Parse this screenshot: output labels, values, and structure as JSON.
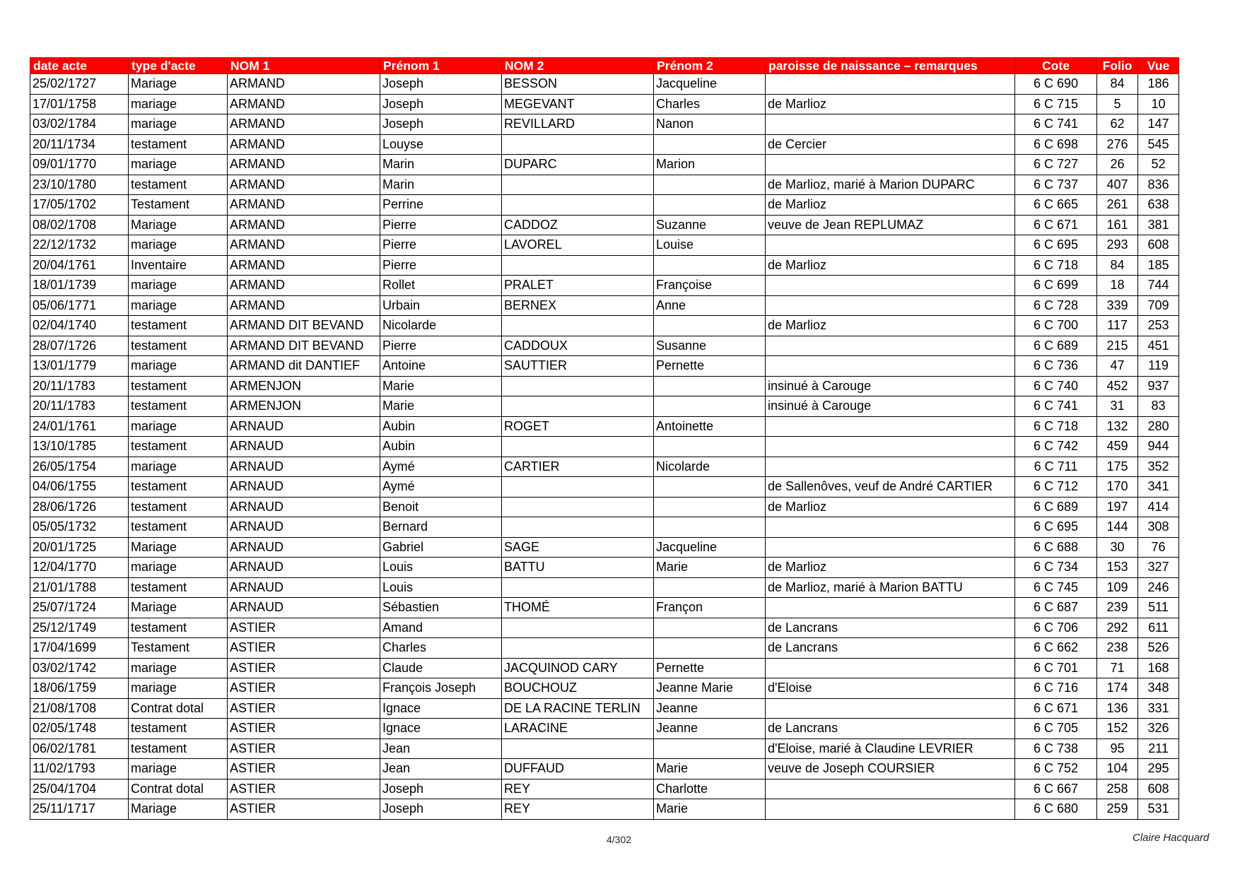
{
  "headers": [
    "date acte",
    "type d'acte",
    "NOM 1",
    "Prénom 1",
    "NOM 2",
    "Prénom 2",
    "paroisse de naissance – remarques",
    "Cote",
    "Folio",
    "Vue"
  ],
  "colors": {
    "header_bg": "#ff0000",
    "header_text": "#ffffff"
  },
  "rows": [
    [
      "25/02/1727",
      "Mariage",
      "ARMAND",
      "Joseph",
      "BESSON",
      "Jacqueline",
      "",
      "6 C 690",
      "84",
      "186"
    ],
    [
      "17/01/1758",
      "mariage",
      "ARMAND",
      "Joseph",
      "MEGEVANT",
      "Charles",
      "de Marlioz",
      "6 C 715",
      "5",
      "10"
    ],
    [
      "03/02/1784",
      "mariage",
      "ARMAND",
      "Joseph",
      "REVILLARD",
      "Nanon",
      "",
      "6 C 741",
      "62",
      "147"
    ],
    [
      "20/11/1734",
      "testament",
      "ARMAND",
      "Louyse",
      "",
      "",
      "de Cercier",
      "6 C 698",
      "276",
      "545"
    ],
    [
      "09/01/1770",
      "mariage",
      "ARMAND",
      "Marin",
      "DUPARC",
      "Marion",
      "",
      "6 C 727",
      "26",
      "52"
    ],
    [
      "23/10/1780",
      "testament",
      "ARMAND",
      "Marin",
      "",
      "",
      "de Marlioz, marié à Marion DUPARC",
      "6 C 737",
      "407",
      "836"
    ],
    [
      "17/05/1702",
      "Testament",
      "ARMAND",
      "Perrine",
      "",
      "",
      "de Marlioz",
      "6 C 665",
      "261",
      "638"
    ],
    [
      "08/02/1708",
      "Mariage",
      "ARMAND",
      "Pierre",
      "CADDOZ",
      "Suzanne",
      "veuve de Jean REPLUMAZ",
      "6 C 671",
      "161",
      "381"
    ],
    [
      "22/12/1732",
      "mariage",
      "ARMAND",
      "Pierre",
      "LAVOREL",
      "Louise",
      "",
      "6 C 695",
      "293",
      "608"
    ],
    [
      "20/04/1761",
      "Inventaire",
      "ARMAND",
      "Pierre",
      "",
      "",
      "de Marlioz",
      "6 C 718",
      "84",
      "185"
    ],
    [
      "18/01/1739",
      "mariage",
      "ARMAND",
      "Rollet",
      "PRALET",
      "Françoise",
      "",
      "6 C 699",
      "18",
      "744"
    ],
    [
      "05/06/1771",
      "mariage",
      "ARMAND",
      "Urbain",
      "BERNEX",
      "Anne",
      "",
      "6 C 728",
      "339",
      "709"
    ],
    [
      "02/04/1740",
      "testament",
      "ARMAND DIT BEVAND",
      "Nicolarde",
      "",
      "",
      "de Marlioz",
      "6 C 700",
      "117",
      "253"
    ],
    [
      "28/07/1726",
      "testament",
      "ARMAND DIT BEVAND",
      "Pierre",
      "CADDOUX",
      "Susanne",
      "",
      "6 C 689",
      "215",
      "451"
    ],
    [
      "13/01/1779",
      "mariage",
      "ARMAND dit DANTIEF",
      "Antoine",
      "SAUTTIER",
      "Pernette",
      "",
      "6 C 736",
      "47",
      "119"
    ],
    [
      "20/11/1783",
      "testament",
      "ARMENJON",
      "Marie",
      "",
      "",
      "insinué à Carouge",
      "6 C 740",
      "452",
      "937"
    ],
    [
      "20/11/1783",
      "testament",
      "ARMENJON",
      "Marie",
      "",
      "",
      "insinué à Carouge",
      "6 C 741",
      "31",
      "83"
    ],
    [
      "24/01/1761",
      "mariage",
      "ARNAUD",
      "Aubin",
      "ROGET",
      "Antoinette",
      "",
      "6 C 718",
      "132",
      "280"
    ],
    [
      "13/10/1785",
      "testament",
      "ARNAUD",
      "Aubin",
      "",
      "",
      "",
      "6 C 742",
      "459",
      "944"
    ],
    [
      "26/05/1754",
      "mariage",
      "ARNAUD",
      "Aymé",
      "CARTIER",
      "Nicolarde",
      "",
      "6 C 711",
      "175",
      "352"
    ],
    [
      "04/06/1755",
      "testament",
      "ARNAUD",
      "Aymé",
      "",
      "",
      "de Sallenôves, veuf de André CARTIER",
      "6 C 712",
      "170",
      "341"
    ],
    [
      "28/06/1726",
      "testament",
      "ARNAUD",
      "Benoit",
      "",
      "",
      "de Marlioz",
      "6 C 689",
      "197",
      "414"
    ],
    [
      "05/05/1732",
      "testament",
      "ARNAUD",
      "Bernard",
      "",
      "",
      "",
      "6 C 695",
      "144",
      "308"
    ],
    [
      "20/01/1725",
      "Mariage",
      "ARNAUD",
      "Gabriel",
      "SAGE",
      "Jacqueline",
      "",
      "6 C 688",
      "30",
      "76"
    ],
    [
      "12/04/1770",
      "mariage",
      "ARNAUD",
      "Louis",
      "BATTU",
      "Marie",
      "de Marlioz",
      "6 C 734",
      "153",
      "327"
    ],
    [
      "21/01/1788",
      "testament",
      "ARNAUD",
      "Louis",
      "",
      "",
      "de Marlioz, marié à Marion BATTU",
      "6 C 745",
      "109",
      "246"
    ],
    [
      "25/07/1724",
      "Mariage",
      "ARNAUD",
      "Sébastien",
      "THOMÉ",
      "Françon",
      "",
      "6 C 687",
      "239",
      "511"
    ],
    [
      "25/12/1749",
      "testament",
      "ASTIER",
      "Amand",
      "",
      "",
      "de Lancrans",
      "6 C 706",
      "292",
      "611"
    ],
    [
      "17/04/1699",
      "Testament",
      "ASTIER",
      "Charles",
      "",
      "",
      "de Lancrans",
      "6 C 662",
      "238",
      "526"
    ],
    [
      "03/02/1742",
      "mariage",
      "ASTIER",
      "Claude",
      "JACQUINOD CARY",
      "Pernette",
      "",
      "6 C 701",
      "71",
      "168"
    ],
    [
      "18/06/1759",
      "mariage",
      "ASTIER",
      "François Joseph",
      "BOUCHOUZ",
      "Jeanne Marie",
      "d'Eloise",
      "6 C 716",
      "174",
      "348"
    ],
    [
      "21/08/1708",
      "Contrat dotal",
      "ASTIER",
      "Ignace",
      "DE LA RACINE TERLIN",
      "Jeanne",
      "",
      "6 C 671",
      "136",
      "331"
    ],
    [
      "02/05/1748",
      "testament",
      "ASTIER",
      "Ignace",
      "LARACINE",
      "Jeanne",
      "de Lancrans",
      "6 C 705",
      "152",
      "326"
    ],
    [
      "06/02/1781",
      "testament",
      "ASTIER",
      "Jean",
      "",
      "",
      "d'Eloise, marié à Claudine LEVRIER",
      "6 C 738",
      "95",
      "211"
    ],
    [
      "11/02/1793",
      "mariage",
      "ASTIER",
      "Jean",
      "DUFFAUD",
      "Marie",
      "veuve de Joseph COURSIER",
      "6 C 752",
      "104",
      "295"
    ],
    [
      "25/04/1704",
      "Contrat dotal",
      "ASTIER",
      "Joseph",
      "REY",
      "Charlotte",
      "",
      "6 C 667",
      "258",
      "608"
    ],
    [
      "25/11/1717",
      "Mariage",
      "ASTIER",
      "Joseph",
      "REY",
      "Marie",
      "",
      "6 C 680",
      "259",
      "531"
    ]
  ],
  "footer": {
    "page": "4/302",
    "author": "Claire Hacquard"
  }
}
